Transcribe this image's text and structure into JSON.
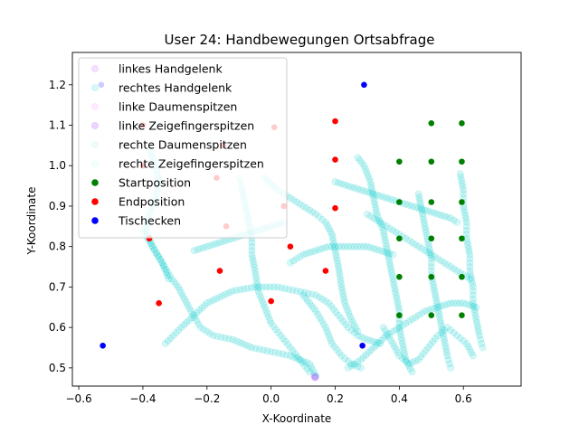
{
  "chart_data": {
    "type": "scatter",
    "title": "User 24: Handbewegungen Ortsabfrage",
    "xlabel": "X-Koordinate",
    "ylabel": "Y-Koordinate",
    "xlim": [
      -0.62,
      0.78
    ],
    "ylim": [
      0.455,
      1.28
    ],
    "xticks": [
      -0.6,
      -0.4,
      -0.2,
      0.0,
      0.2,
      0.4,
      0.6
    ],
    "xtick_labels": [
      "−0.6",
      "−0.4",
      "−0.2",
      "0.0",
      "0.2",
      "0.4",
      "0.6"
    ],
    "yticks": [
      0.5,
      0.6,
      0.7,
      0.8,
      0.9,
      1.0,
      1.1,
      1.2
    ],
    "ytick_labels": [
      "0.5",
      "0.6",
      "0.7",
      "0.8",
      "0.9",
      "1.0",
      "1.1",
      "1.2"
    ],
    "legend_position": "top-left",
    "series": [
      {
        "name": "linkes Handgelenk",
        "color": "#cc66ff",
        "alpha": 0.2,
        "points": [
          [
            0.138,
            0.478
          ],
          [
            0.135,
            0.48
          ]
        ]
      },
      {
        "name": "rechtes Handgelenk",
        "color": "#00cccc",
        "alpha": 0.15,
        "paths": [
          [
            [
              -0.4,
              0.84
            ],
            [
              -0.37,
              0.8
            ],
            [
              -0.34,
              0.76
            ],
            [
              -0.31,
              0.72
            ],
            [
              -0.29,
              0.7
            ],
            [
              -0.27,
              0.67
            ],
            [
              -0.25,
              0.64
            ],
            [
              -0.22,
              0.6
            ],
            [
              -0.18,
              0.58
            ],
            [
              -0.12,
              0.57
            ],
            [
              -0.06,
              0.55
            ],
            [
              0.0,
              0.54
            ],
            [
              0.06,
              0.53
            ],
            [
              0.12,
              0.51
            ],
            [
              0.14,
              0.48
            ]
          ],
          [
            [
              -0.33,
              0.56
            ],
            [
              -0.28,
              0.6
            ],
            [
              -0.2,
              0.66
            ],
            [
              -0.12,
              0.69
            ],
            [
              -0.05,
              0.7
            ],
            [
              0.02,
              0.7
            ],
            [
              0.08,
              0.69
            ],
            [
              0.14,
              0.68
            ],
            [
              0.18,
              0.66
            ],
            [
              0.21,
              0.63
            ],
            [
              0.24,
              0.6
            ],
            [
              0.27,
              0.58
            ],
            [
              0.3,
              0.57
            ],
            [
              0.34,
              0.56
            ]
          ],
          [
            [
              -0.1,
              0.97
            ],
            [
              -0.09,
              0.94
            ],
            [
              -0.08,
              0.9
            ],
            [
              -0.07,
              0.86
            ],
            [
              -0.06,
              0.82
            ],
            [
              -0.06,
              0.78
            ],
            [
              -0.05,
              0.74
            ],
            [
              -0.04,
              0.69
            ],
            [
              -0.02,
              0.65
            ],
            [
              0.0,
              0.61
            ],
            [
              0.03,
              0.58
            ],
            [
              0.06,
              0.55
            ],
            [
              0.09,
              0.52
            ],
            [
              0.12,
              0.49
            ]
          ],
          [
            [
              0.27,
              1.02
            ],
            [
              0.29,
              1.0
            ],
            [
              0.31,
              0.96
            ],
            [
              0.32,
              0.92
            ],
            [
              0.33,
              0.88
            ],
            [
              0.35,
              0.84
            ],
            [
              0.36,
              0.8
            ],
            [
              0.37,
              0.76
            ],
            [
              0.38,
              0.72
            ],
            [
              0.39,
              0.68
            ],
            [
              0.4,
              0.64
            ],
            [
              0.4,
              0.6
            ],
            [
              0.41,
              0.56
            ],
            [
              0.42,
              0.52
            ],
            [
              0.44,
              0.49
            ]
          ],
          [
            [
              0.46,
              0.93
            ],
            [
              0.47,
              0.89
            ],
            [
              0.48,
              0.85
            ],
            [
              0.49,
              0.81
            ],
            [
              0.5,
              0.77
            ],
            [
              0.5,
              0.73
            ],
            [
              0.51,
              0.69
            ],
            [
              0.52,
              0.65
            ],
            [
              0.53,
              0.61
            ],
            [
              0.54,
              0.57
            ],
            [
              0.55,
              0.53
            ],
            [
              0.56,
              0.5
            ]
          ],
          [
            [
              0.59,
              0.98
            ],
            [
              0.6,
              0.94
            ],
            [
              0.6,
              0.9
            ],
            [
              0.61,
              0.86
            ],
            [
              0.61,
              0.82
            ],
            [
              0.62,
              0.78
            ],
            [
              0.62,
              0.74
            ],
            [
              0.63,
              0.7
            ],
            [
              0.63,
              0.66
            ],
            [
              0.64,
              0.62
            ],
            [
              0.65,
              0.58
            ],
            [
              0.66,
              0.55
            ]
          ],
          [
            [
              0.3,
              0.88
            ],
            [
              0.34,
              0.86
            ],
            [
              0.38,
              0.84
            ],
            [
              0.42,
              0.82
            ],
            [
              0.46,
              0.8
            ],
            [
              0.5,
              0.78
            ],
            [
              0.54,
              0.76
            ],
            [
              0.58,
              0.74
            ],
            [
              0.62,
              0.72
            ]
          ],
          [
            [
              0.2,
              0.96
            ],
            [
              0.24,
              0.95
            ],
            [
              0.28,
              0.94
            ],
            [
              0.32,
              0.93
            ],
            [
              0.36,
              0.92
            ],
            [
              0.4,
              0.91
            ],
            [
              0.44,
              0.9
            ],
            [
              0.48,
              0.89
            ],
            [
              0.52,
              0.88
            ],
            [
              0.56,
              0.87
            ],
            [
              0.58,
              0.86
            ]
          ],
          [
            [
              -0.02,
              0.97
            ],
            [
              0.02,
              0.94
            ],
            [
              0.06,
              0.92
            ],
            [
              0.1,
              0.9
            ],
            [
              0.14,
              0.88
            ],
            [
              0.17,
              0.86
            ],
            [
              0.19,
              0.83
            ],
            [
              0.2,
              0.79
            ],
            [
              0.21,
              0.75
            ],
            [
              0.22,
              0.7
            ],
            [
              0.23,
              0.66
            ],
            [
              0.25,
              0.62
            ],
            [
              0.27,
              0.59
            ]
          ],
          [
            [
              -0.38,
              1.04
            ],
            [
              -0.36,
              1.0
            ],
            [
              -0.35,
              0.96
            ],
            [
              -0.36,
              0.92
            ],
            [
              -0.38,
              0.88
            ],
            [
              -0.39,
              0.84
            ],
            [
              -0.37,
              0.8
            ],
            [
              -0.34,
              0.76
            ],
            [
              -0.32,
              0.72
            ]
          ],
          [
            [
              0.24,
              0.5
            ],
            [
              0.28,
              0.52
            ],
            [
              0.32,
              0.55
            ],
            [
              0.36,
              0.58
            ],
            [
              0.4,
              0.6
            ],
            [
              0.44,
              0.62
            ],
            [
              0.48,
              0.64
            ],
            [
              0.52,
              0.65
            ],
            [
              0.56,
              0.66
            ],
            [
              0.6,
              0.66
            ],
            [
              0.64,
              0.65
            ]
          ],
          [
            [
              0.06,
              0.76
            ],
            [
              0.1,
              0.78
            ],
            [
              0.14,
              0.79
            ],
            [
              0.18,
              0.8
            ],
            [
              0.22,
              0.8
            ],
            [
              0.26,
              0.8
            ],
            [
              0.3,
              0.8
            ],
            [
              0.34,
              0.79
            ],
            [
              0.38,
              0.78
            ]
          ],
          [
            [
              -0.24,
              0.79
            ],
            [
              -0.2,
              0.8
            ],
            [
              -0.16,
              0.81
            ],
            [
              -0.12,
              0.82
            ],
            [
              -0.08,
              0.83
            ],
            [
              -0.04,
              0.84
            ],
            [
              0.0,
              0.85
            ],
            [
              0.04,
              0.86
            ]
          ],
          [
            [
              0.35,
              0.6
            ],
            [
              0.38,
              0.56
            ],
            [
              0.4,
              0.53
            ],
            [
              0.43,
              0.51
            ],
            [
              0.46,
              0.52
            ],
            [
              0.49,
              0.55
            ],
            [
              0.52,
              0.58
            ],
            [
              0.55,
              0.6
            ],
            [
              0.58,
              0.58
            ],
            [
              0.61,
              0.56
            ],
            [
              0.63,
              0.53
            ]
          ],
          [
            [
              0.1,
              0.68
            ],
            [
              0.14,
              0.64
            ],
            [
              0.17,
              0.6
            ],
            [
              0.19,
              0.56
            ],
            [
              0.22,
              0.53
            ],
            [
              0.25,
              0.51
            ],
            [
              0.28,
              0.5
            ]
          ]
        ]
      },
      {
        "name": "linke Daumenspitzen",
        "color": "#ff99ff",
        "alpha": 0.2,
        "points": []
      },
      {
        "name": "linke Zeigefingerspitzen",
        "color": "#9933ff",
        "alpha": 0.2,
        "points": [
          [
            0.137,
            0.476
          ]
        ]
      },
      {
        "name": "rechte Daumenspitzen",
        "color": "#66cccc",
        "alpha": 0.1,
        "points": []
      },
      {
        "name": "rechte Zeigefingerspitzen",
        "color": "#66ffcc",
        "alpha": 0.1,
        "points": []
      },
      {
        "name": "Startposition",
        "color": "#008000",
        "alpha": 1.0,
        "points": [
          [
            0.4,
            1.01
          ],
          [
            0.4,
            0.91
          ],
          [
            0.4,
            0.82
          ],
          [
            0.4,
            0.725
          ],
          [
            0.4,
            0.63
          ],
          [
            0.5,
            1.105
          ],
          [
            0.5,
            1.01
          ],
          [
            0.5,
            0.91
          ],
          [
            0.5,
            0.82
          ],
          [
            0.5,
            0.725
          ],
          [
            0.5,
            0.63
          ],
          [
            0.595,
            1.105
          ],
          [
            0.595,
            1.01
          ],
          [
            0.595,
            0.91
          ],
          [
            0.595,
            0.82
          ],
          [
            0.595,
            0.725
          ],
          [
            0.595,
            0.63
          ]
        ]
      },
      {
        "name": "Endposition",
        "color": "#ff0000",
        "alpha": 1.0,
        "points": [
          [
            -0.4,
            1.1
          ],
          [
            -0.4,
            1.0
          ],
          [
            -0.38,
            0.82
          ],
          [
            -0.35,
            0.66
          ],
          [
            -0.15,
            1.05
          ],
          [
            -0.17,
            0.97
          ],
          [
            -0.14,
            0.85
          ],
          [
            -0.16,
            0.74
          ],
          [
            0.01,
            1.095
          ],
          [
            0.04,
            0.9
          ],
          [
            0.06,
            0.8
          ],
          [
            0.0,
            0.665
          ],
          [
            0.2,
            1.11
          ],
          [
            0.2,
            1.015
          ],
          [
            0.2,
            0.895
          ],
          [
            0.17,
            0.74
          ]
        ]
      },
      {
        "name": "Tischecken",
        "color": "#0000ff",
        "alpha": 1.0,
        "points": [
          [
            -0.53,
            1.2
          ],
          [
            0.29,
            1.2
          ],
          [
            -0.525,
            0.555
          ],
          [
            0.285,
            0.555
          ]
        ]
      }
    ]
  }
}
